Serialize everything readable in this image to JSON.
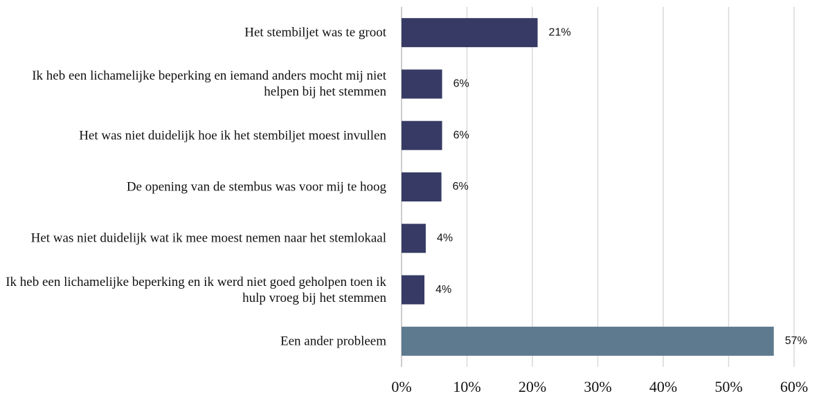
{
  "chart_data": {
    "type": "hbar",
    "categories": [
      "Het stembiljet was te groot",
      "Ik heb een lichamelijke beperking en iemand anders mocht mij niet helpen bij het stemmen",
      "Het was niet duidelijk hoe ik het stembiljet moest invullen",
      "De opening van de stembus was voor mij te hoog",
      "Het was niet duidelijk wat ik mee moest nemen naar het stemlokaal",
      "Ik heb een lichamelijke beperking en ik werd niet goed geholpen toen ik hulp vroeg bij het stemmen",
      "Een ander probleem"
    ],
    "values": [
      20.8,
      6.2,
      6.2,
      6.1,
      3.7,
      3.5,
      56.9
    ],
    "value_labels": [
      "21%",
      "6%",
      "6%",
      "6%",
      "4%",
      "4%",
      "57%"
    ],
    "colors": [
      "#363a64",
      "#363a64",
      "#363a64",
      "#363a64",
      "#363a64",
      "#363a64",
      "#5e7a8e"
    ],
    "xlim": [
      0,
      60
    ],
    "xticks": [
      {
        "value": 0,
        "label": "0%"
      },
      {
        "value": 10,
        "label": "10%"
      },
      {
        "value": 20,
        "label": "20%"
      },
      {
        "value": 30,
        "label": "30%"
      },
      {
        "value": 40,
        "label": "40%"
      },
      {
        "value": 50,
        "label": "50%"
      },
      {
        "value": 60,
        "label": "60%"
      }
    ],
    "grid": true
  }
}
